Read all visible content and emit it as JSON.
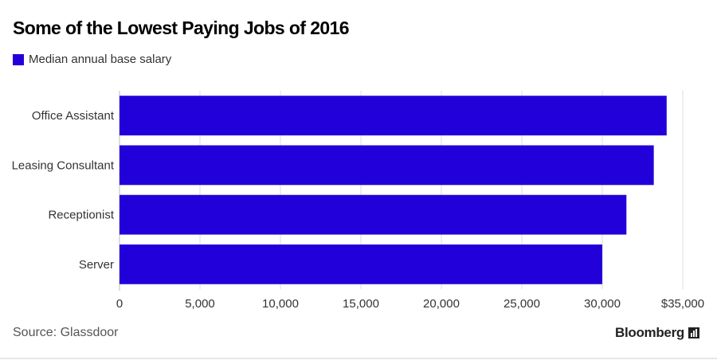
{
  "chart_data": {
    "type": "bar",
    "orientation": "horizontal",
    "title": "Some of the Lowest Paying Jobs of 2016",
    "categories": [
      "Office Assistant",
      "Leasing Consultant",
      "Receptionist",
      "Server"
    ],
    "series": [
      {
        "name": "Median annual base salary",
        "values": [
          34000,
          33200,
          31500,
          30000
        ]
      }
    ],
    "xlim": [
      0,
      35000
    ],
    "xticks": [
      0,
      5000,
      10000,
      15000,
      20000,
      25000,
      30000,
      35000
    ],
    "xtick_labels": [
      "0",
      "5,000",
      "10,000",
      "15,000",
      "20,000",
      "25,000",
      "30,000",
      "$35,000"
    ],
    "xlabel": "",
    "ylabel": "",
    "grid": true,
    "bar_color": "#2200d9",
    "legend_position": "top-left"
  },
  "footer": {
    "source": "Source: Glassdoor",
    "brand": "Bloomberg",
    "brand_icon": "bloomberg-chart-icon"
  }
}
